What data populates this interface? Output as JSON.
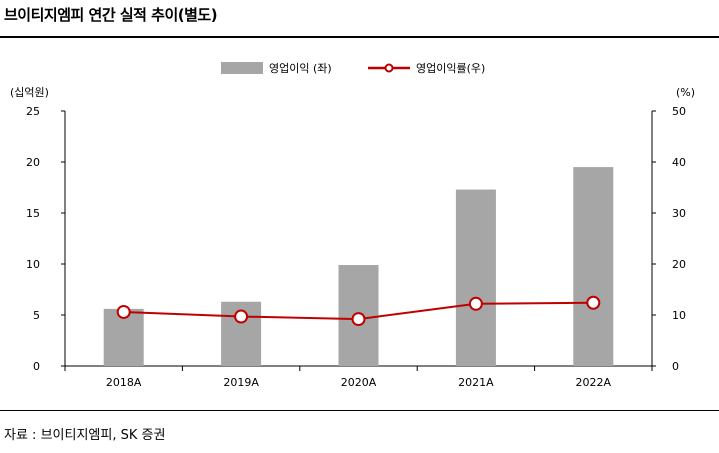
{
  "title": "브이티지엠피 연간 실적 추이(별도)",
  "source": "자료 : 브이티지엠피, SK 증권",
  "chart_data": {
    "type": "bar",
    "categories": [
      "2018A",
      "2019A",
      "2020A",
      "2021A",
      "2022A"
    ],
    "series": [
      {
        "name": "영업이익 (좌)",
        "type": "bar",
        "axis": "left",
        "values": [
          5.6,
          6.3,
          9.9,
          17.3,
          19.5
        ],
        "color": "#a6a6a6"
      },
      {
        "name": "영업이익률(우)",
        "type": "line",
        "axis": "right",
        "values": [
          10.6,
          9.7,
          9.2,
          12.2,
          12.4
        ],
        "color": "#c00000"
      }
    ],
    "left_axis": {
      "label": "(십억원)",
      "ylim": [
        0,
        25
      ],
      "ticks": [
        0,
        5,
        10,
        15,
        20,
        25
      ]
    },
    "right_axis": {
      "label": "(%)",
      "ylim": [
        0,
        50
      ],
      "ticks": [
        0,
        10,
        20,
        30,
        40,
        50
      ]
    },
    "grid": false,
    "legend": "top-center"
  }
}
